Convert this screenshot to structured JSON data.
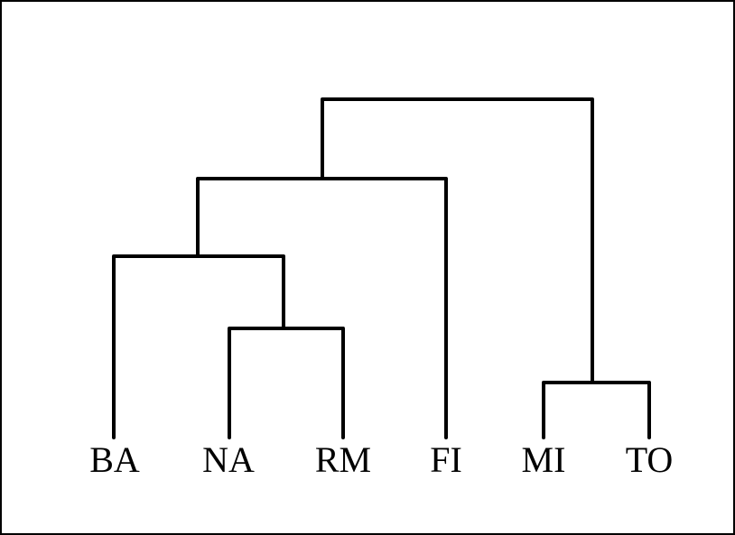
{
  "diagram": {
    "type": "dendrogram",
    "leaves": [
      {
        "id": "BA",
        "label": "BA"
      },
      {
        "id": "NA",
        "label": "NA"
      },
      {
        "id": "RM",
        "label": "RM"
      },
      {
        "id": "FI",
        "label": "FI"
      },
      {
        "id": "MI",
        "label": "MI"
      },
      {
        "id": "TO",
        "label": "TO"
      }
    ],
    "merges": [
      {
        "name": "NA-RM",
        "children": [
          "NA",
          "RM"
        ]
      },
      {
        "name": "BA-NA-RM",
        "children": [
          "BA",
          "NA-RM"
        ]
      },
      {
        "name": "BA-NA-RM-FI",
        "children": [
          "BA-NA-RM",
          "FI"
        ]
      },
      {
        "name": "MI-TO",
        "children": [
          "MI",
          "TO"
        ]
      },
      {
        "name": "root",
        "children": [
          "BA-NA-RM-FI",
          "MI-TO"
        ]
      }
    ],
    "line_color": "#000000"
  }
}
